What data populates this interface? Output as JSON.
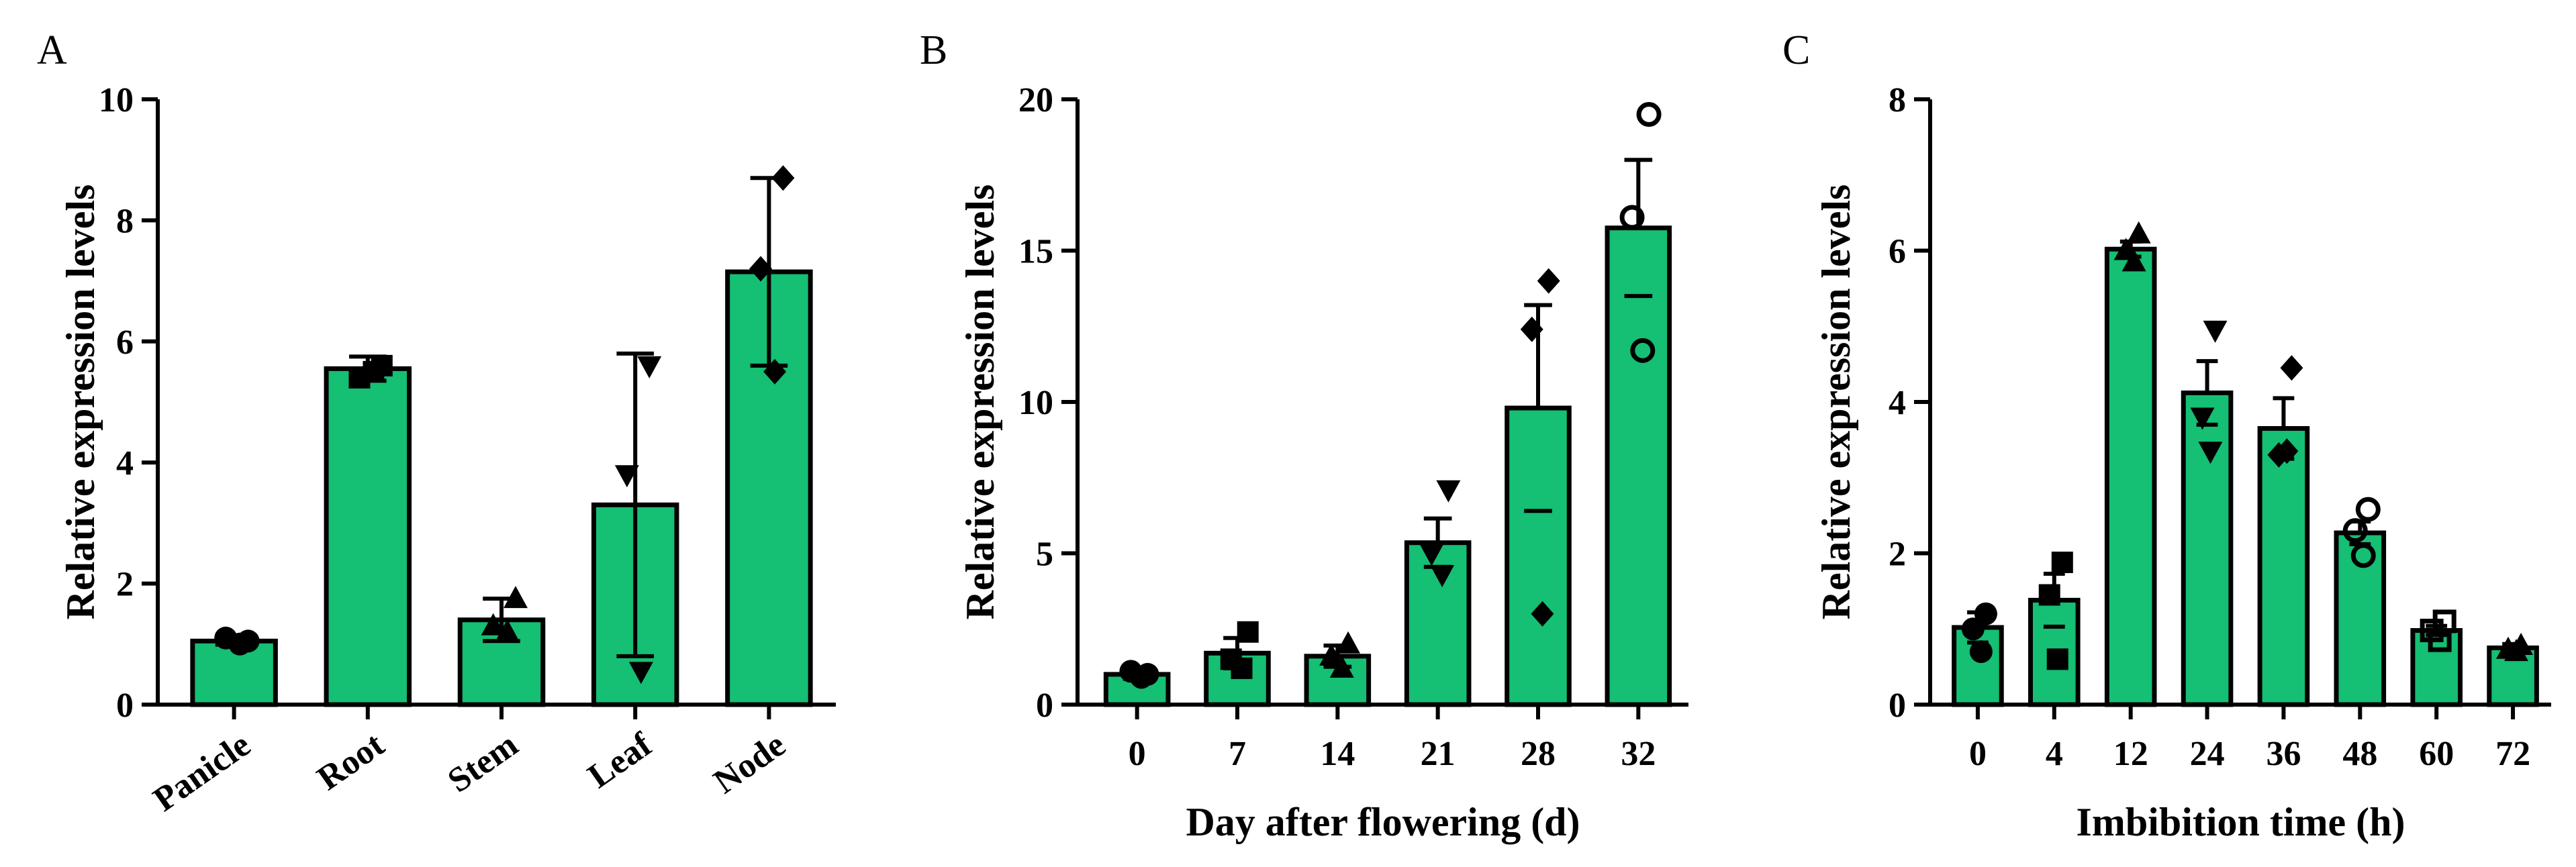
{
  "colors": {
    "bar": "#15bf73",
    "ink": "#000000"
  },
  "chart_data": [
    {
      "panel": "A",
      "type": "bar",
      "ylabel": "Relative expression levels",
      "xlabel": "",
      "ylim": [
        0,
        10
      ],
      "yticks": [
        0,
        2,
        4,
        6,
        8,
        10
      ],
      "categories": [
        "Panicle",
        "Root",
        "Stem",
        "Leaf",
        "Node"
      ],
      "values": [
        1.05,
        5.55,
        1.4,
        3.3,
        7.15
      ],
      "errors": [
        0.06,
        0.2,
        0.35,
        2.5,
        1.55
      ],
      "error_style": "both",
      "marker": [
        "circle",
        "square",
        "triangle-up",
        "triangle-down",
        "diamond"
      ],
      "points": [
        [
          1.05,
          1.1,
          1.0
        ],
        [
          5.6,
          5.4,
          5.5
        ],
        [
          1.75,
          1.3,
          1.2
        ],
        [
          5.6,
          3.8,
          0.55
        ],
        [
          8.7,
          7.2,
          5.5
        ]
      ]
    },
    {
      "panel": "B",
      "type": "bar",
      "ylabel": "Relative expression levels",
      "xlabel": "Day after flowering (d)",
      "ylim": [
        0,
        20
      ],
      "yticks": [
        0,
        5,
        10,
        15,
        20
      ],
      "categories": [
        "0",
        "7",
        "14",
        "21",
        "28",
        "32"
      ],
      "values": [
        1.0,
        1.7,
        1.6,
        5.35,
        9.8,
        15.75
      ],
      "errors": [
        0.15,
        0.5,
        0.35,
        0.8,
        3.4,
        2.25
      ],
      "error_style": "upper",
      "marker": [
        "circle",
        "square",
        "triangle-up",
        "triangle-down",
        "diamond",
        "circle-open"
      ],
      "points": [
        [
          1.0,
          1.1,
          0.9
        ],
        [
          2.4,
          1.5,
          1.2
        ],
        [
          2.0,
          1.6,
          1.2
        ],
        [
          7.1,
          5.0,
          4.3
        ],
        [
          14.0,
          12.4,
          3.0
        ],
        [
          19.5,
          16.1,
          11.7
        ]
      ]
    },
    {
      "panel": "C",
      "type": "bar",
      "ylabel": "Relative expression levels",
      "xlabel": "Imbibition time (h)",
      "ylim": [
        0,
        8
      ],
      "yticks": [
        0,
        2,
        4,
        6,
        8
      ],
      "categories": [
        "0",
        "4",
        "12",
        "24",
        "36",
        "48",
        "60",
        "72"
      ],
      "values": [
        1.02,
        1.38,
        6.02,
        4.12,
        3.65,
        2.27,
        0.98,
        0.75
      ],
      "errors": [
        0.2,
        0.35,
        0.1,
        0.42,
        0.4,
        0.15,
        0.06,
        0.05
      ],
      "error_style": "upper",
      "marker": [
        "circle",
        "square",
        "triangle-up",
        "triangle-down",
        "diamond",
        "circle-open",
        "square-open",
        "triangle-up"
      ],
      "points": [
        [
          1.2,
          1.0,
          0.7
        ],
        [
          1.88,
          1.45,
          0.6
        ],
        [
          6.22,
          6.0,
          5.85
        ],
        [
          4.95,
          3.8,
          3.35
        ],
        [
          4.45,
          3.3,
          3.35
        ],
        [
          2.58,
          2.3,
          1.97
        ],
        [
          1.1,
          0.98,
          0.85
        ],
        [
          0.78,
          0.73,
          0.7
        ]
      ]
    }
  ]
}
